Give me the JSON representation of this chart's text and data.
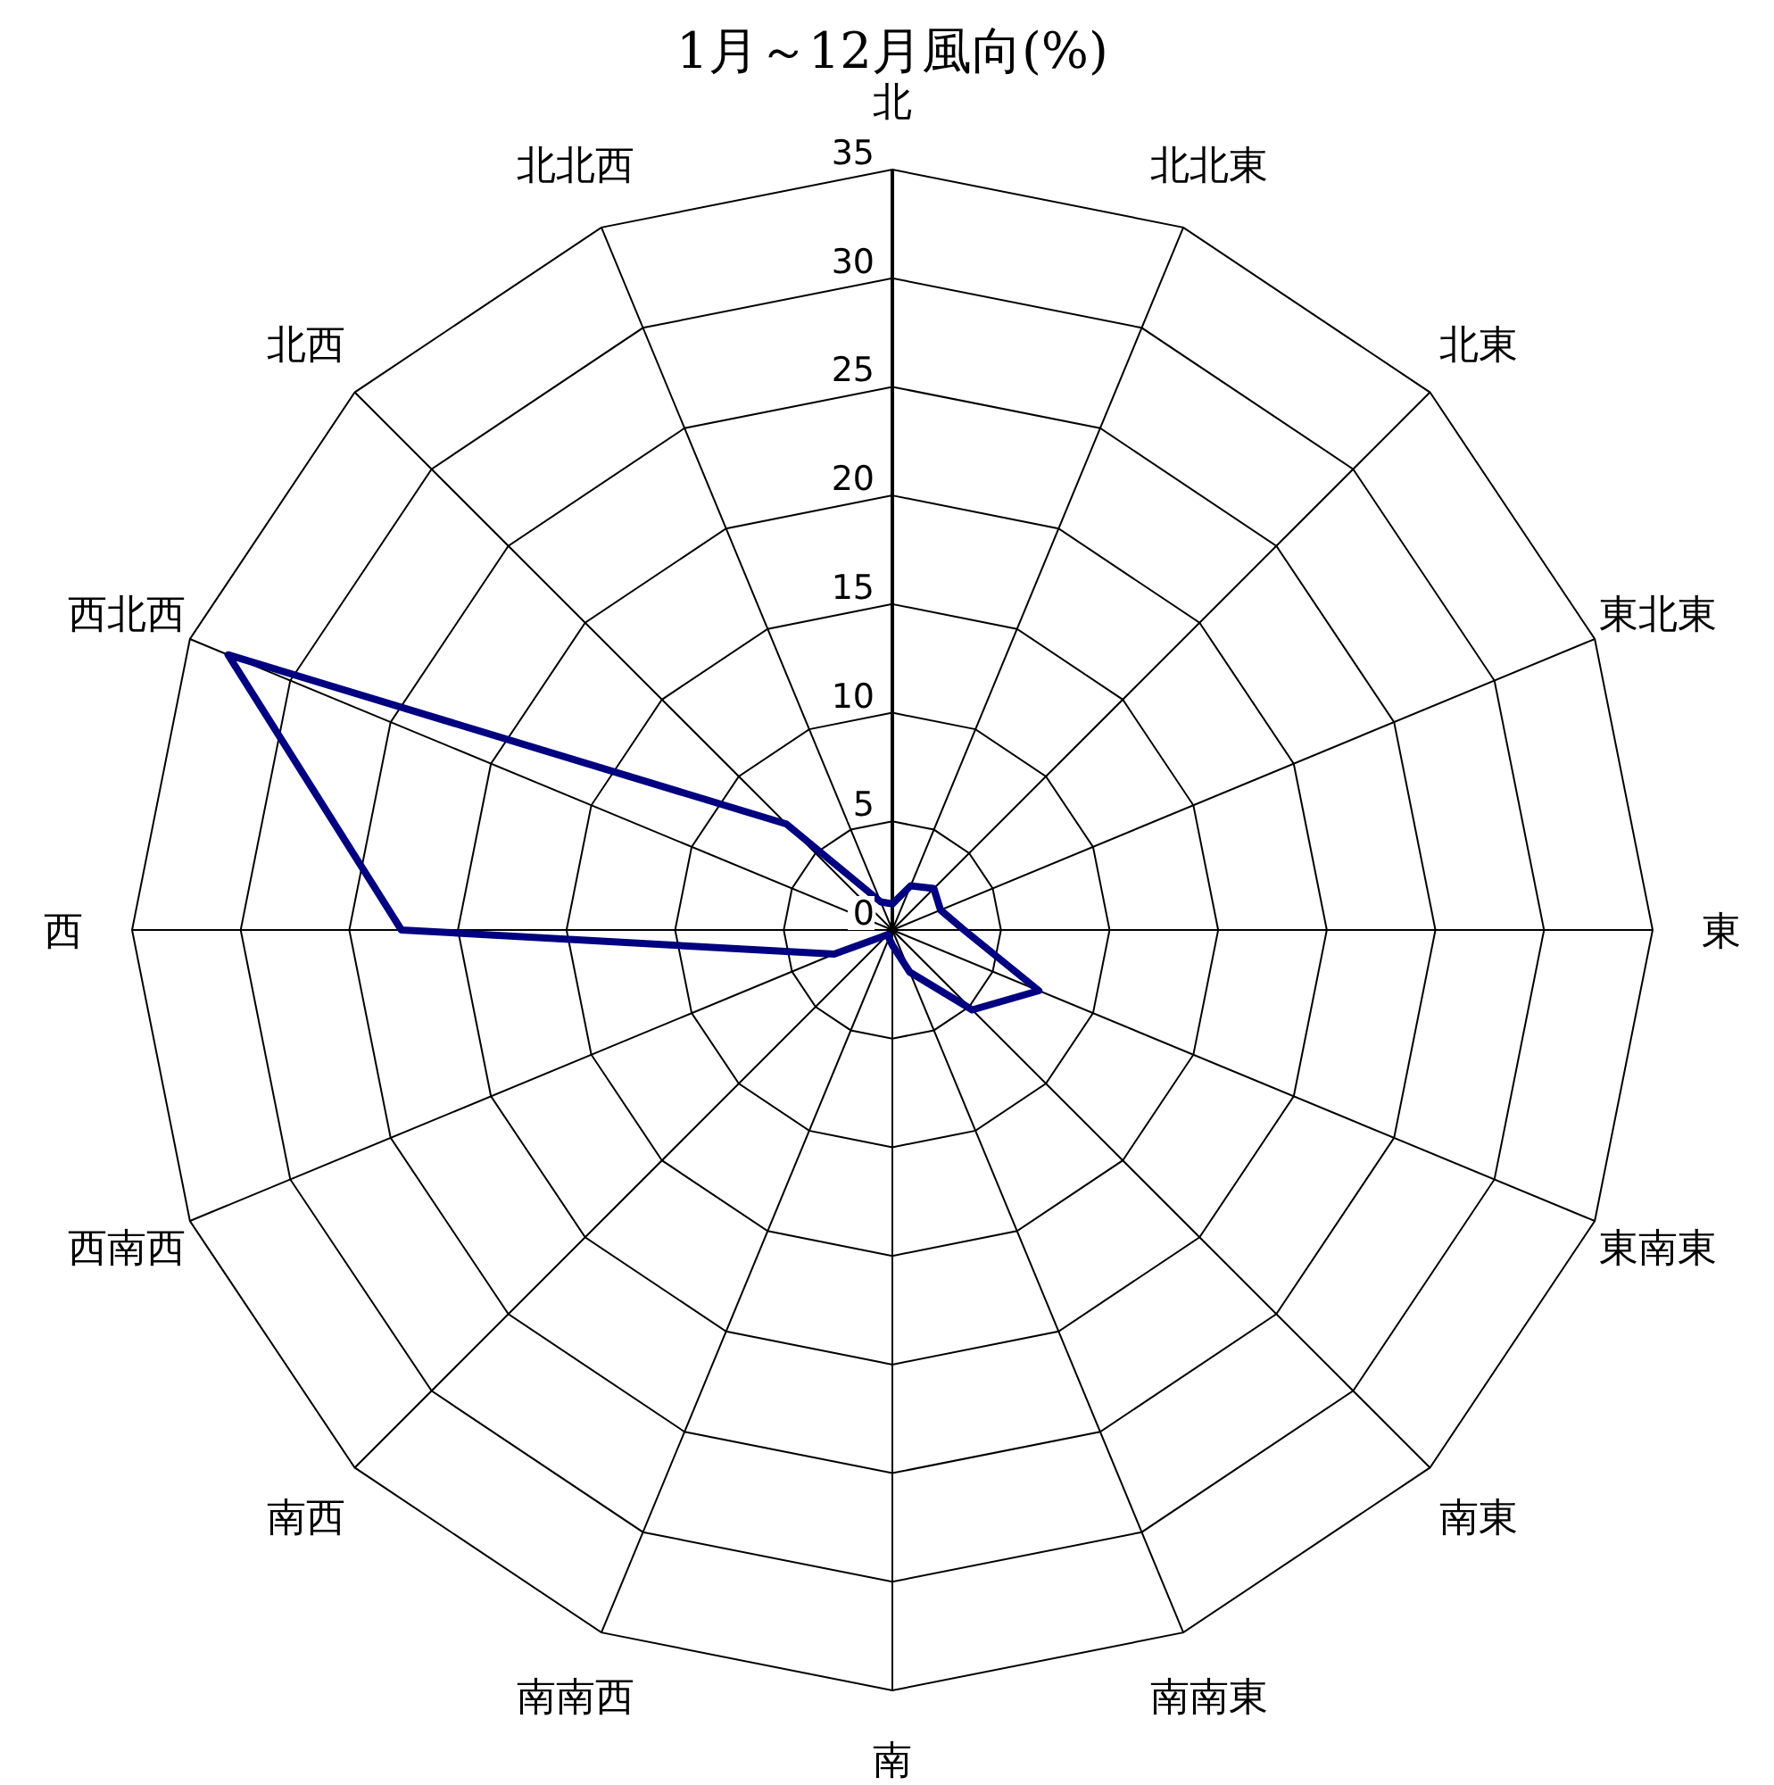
{
  "chart_data": {
    "type": "radar",
    "title": "1月～12月風向(%)",
    "categories": [
      "北",
      "北北東",
      "北東",
      "東北東",
      "東",
      "東南東",
      "南東",
      "南南東",
      "南",
      "南南西",
      "南西",
      "西南西",
      "西",
      "西北西",
      "北西",
      "北北西"
    ],
    "series": [
      {
        "color": "#000080",
        "values": [
          1.2,
          2.2,
          2.7,
          2.4,
          3.3,
          7.3,
          5.2,
          2.1,
          0.7,
          0.4,
          0.3,
          2.9,
          22.6,
          33.1,
          6.9,
          1.4
        ]
      }
    ],
    "ylim": [
      0,
      35
    ],
    "yticks": [
      0,
      5,
      10,
      15,
      20,
      25,
      30,
      35
    ],
    "grid": true,
    "marker": "none"
  }
}
